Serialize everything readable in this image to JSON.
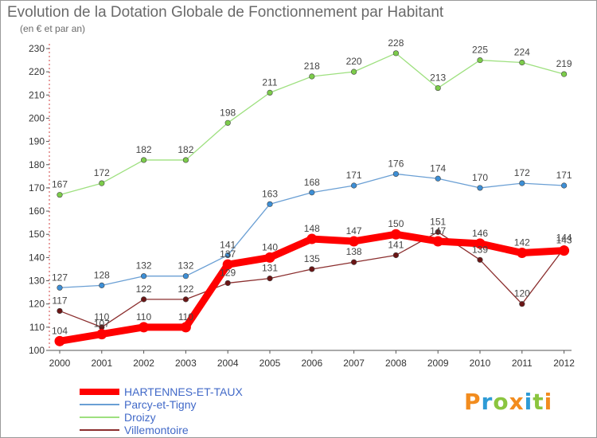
{
  "header": {
    "title": "Evolution de la Dotation Globale de Fonctionnement par Habitant",
    "subtitle": "(en € et par an)"
  },
  "logo": {
    "text": "Proxiti",
    "letters": [
      {
        "ch": "P",
        "color": "#f28c1e"
      },
      {
        "ch": "r",
        "color": "#2e9bd6"
      },
      {
        "ch": "o",
        "color": "#8bc53f"
      },
      {
        "ch": "x",
        "color": "#f28c1e"
      },
      {
        "ch": "i",
        "color": "#2e9bd6"
      },
      {
        "ch": "t",
        "color": "#8bc53f"
      },
      {
        "ch": "i",
        "color": "#f28c1e"
      }
    ]
  },
  "chart_data": {
    "type": "line",
    "title": "Evolution de la Dotation Globale de Fonctionnement par Habitant",
    "subtitle": "(en € et par an)",
    "x": [
      2000,
      2001,
      2002,
      2003,
      2004,
      2005,
      2006,
      2007,
      2008,
      2009,
      2010,
      2011,
      2012
    ],
    "ylim": [
      100,
      230
    ],
    "yticks": [
      100,
      110,
      120,
      130,
      140,
      150,
      160,
      170,
      180,
      190,
      200,
      210,
      220,
      230
    ],
    "grid": false,
    "legend_position": "bottom-left",
    "series": [
      {
        "name": "HARTENNES-ET-TAUX",
        "color": "#ff0000",
        "emphasis": true,
        "values": [
          104,
          107,
          110,
          110,
          137,
          140,
          148,
          147,
          150,
          147,
          146,
          142,
          143
        ]
      },
      {
        "name": "Parcy-et-Tigny",
        "color": "#6a9fd4",
        "point_color": "#3d8fd6",
        "values": [
          127,
          128,
          132,
          132,
          141,
          163,
          168,
          171,
          176,
          174,
          170,
          172,
          171
        ]
      },
      {
        "name": "Droizy",
        "color": "#9ee07f",
        "point_color": "#7ccc4a",
        "values": [
          167,
          172,
          182,
          182,
          198,
          211,
          218,
          220,
          228,
          213,
          225,
          224,
          219
        ]
      },
      {
        "name": "Villemontoire",
        "color": "#8b2e2e",
        "point_color": "#6b1515",
        "values": [
          117,
          110,
          122,
          122,
          129,
          131,
          135,
          138,
          141,
          151,
          139,
          120,
          144
        ]
      }
    ]
  }
}
